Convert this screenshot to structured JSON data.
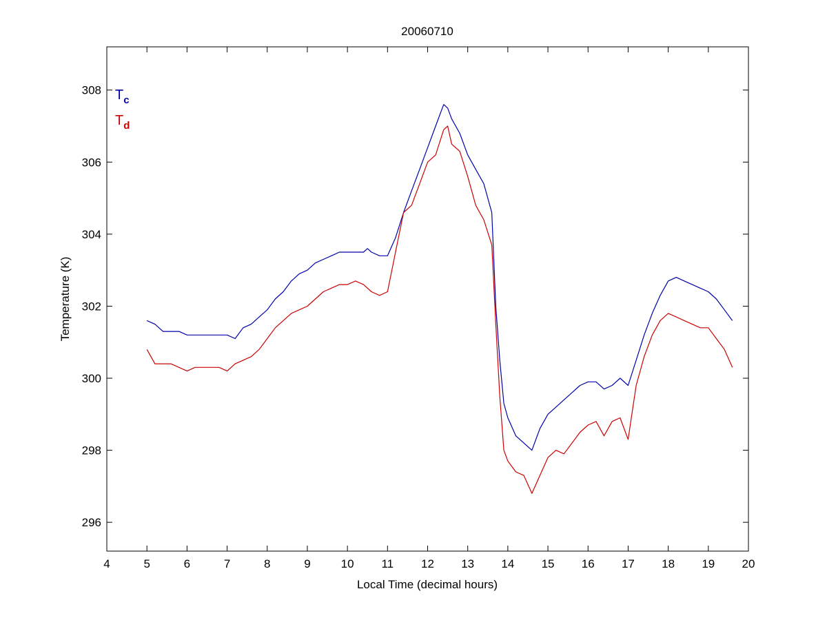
{
  "chart_data": {
    "type": "line",
    "title": "20060710",
    "xlabel": "Local Time (decimal hours)",
    "ylabel": "Temperature (K)",
    "xlim": [
      4,
      20
    ],
    "ylim": [
      295.2,
      309.2
    ],
    "xticks": [
      4,
      5,
      6,
      7,
      8,
      9,
      10,
      11,
      12,
      13,
      14,
      15,
      16,
      17,
      18,
      19,
      20
    ],
    "yticks": [
      296,
      298,
      300,
      302,
      304,
      306,
      308
    ],
    "grid": false,
    "legend_position": "top-left",
    "series": [
      {
        "name_base": "T",
        "name_sub": "c",
        "color": "#0000aa",
        "x": [
          5.0,
          5.2,
          5.4,
          5.6,
          5.8,
          6.0,
          6.2,
          6.4,
          6.6,
          6.8,
          7.0,
          7.2,
          7.4,
          7.6,
          7.8,
          8.0,
          8.2,
          8.4,
          8.6,
          8.8,
          9.0,
          9.2,
          9.4,
          9.6,
          9.8,
          10.0,
          10.2,
          10.4,
          10.5,
          10.6,
          10.8,
          11.0,
          11.2,
          11.4,
          11.6,
          11.8,
          12.0,
          12.2,
          12.4,
          12.5,
          12.6,
          12.8,
          13.0,
          13.2,
          13.4,
          13.6,
          13.7,
          13.8,
          13.9,
          14.0,
          14.2,
          14.4,
          14.6,
          14.8,
          15.0,
          15.2,
          15.4,
          15.6,
          15.8,
          16.0,
          16.2,
          16.4,
          16.6,
          16.8,
          17.0,
          17.2,
          17.4,
          17.6,
          17.8,
          18.0,
          18.2,
          18.4,
          18.6,
          18.8,
          19.0,
          19.2,
          19.4,
          19.6
        ],
        "y": [
          301.6,
          301.5,
          301.3,
          301.3,
          301.3,
          301.2,
          301.2,
          301.2,
          301.2,
          301.2,
          301.2,
          301.1,
          301.4,
          301.5,
          301.7,
          301.9,
          302.2,
          302.4,
          302.7,
          302.9,
          303.0,
          303.2,
          303.3,
          303.4,
          303.5,
          303.5,
          303.5,
          303.5,
          303.6,
          303.5,
          303.4,
          303.4,
          303.9,
          304.6,
          305.2,
          305.8,
          306.4,
          307.0,
          307.6,
          307.5,
          307.2,
          306.8,
          306.2,
          305.8,
          305.4,
          304.6,
          302.0,
          300.5,
          299.3,
          298.9,
          298.4,
          298.2,
          298.0,
          298.6,
          299.0,
          299.2,
          299.4,
          299.6,
          299.8,
          299.9,
          299.9,
          299.7,
          299.8,
          300.0,
          299.8,
          300.5,
          301.2,
          301.8,
          302.3,
          302.7,
          302.8,
          302.7,
          302.6,
          302.5,
          302.4,
          302.2,
          301.9,
          301.6
        ]
      },
      {
        "name_base": "T",
        "name_sub": "d",
        "color": "#cc0000",
        "x": [
          5.0,
          5.2,
          5.4,
          5.6,
          5.8,
          6.0,
          6.2,
          6.4,
          6.6,
          6.8,
          7.0,
          7.2,
          7.4,
          7.6,
          7.8,
          8.0,
          8.2,
          8.4,
          8.6,
          8.8,
          9.0,
          9.2,
          9.4,
          9.6,
          9.8,
          10.0,
          10.2,
          10.4,
          10.6,
          10.8,
          11.0,
          11.2,
          11.4,
          11.6,
          11.8,
          12.0,
          12.2,
          12.4,
          12.5,
          12.6,
          12.8,
          13.0,
          13.2,
          13.4,
          13.6,
          13.7,
          13.8,
          13.9,
          14.0,
          14.2,
          14.4,
          14.6,
          14.8,
          15.0,
          15.2,
          15.4,
          15.6,
          15.8,
          16.0,
          16.2,
          16.4,
          16.6,
          16.8,
          17.0,
          17.2,
          17.4,
          17.6,
          17.8,
          18.0,
          18.2,
          18.4,
          18.6,
          18.8,
          19.0,
          19.2,
          19.4,
          19.6
        ],
        "y": [
          300.8,
          300.4,
          300.4,
          300.4,
          300.3,
          300.2,
          300.3,
          300.3,
          300.3,
          300.3,
          300.2,
          300.4,
          300.5,
          300.6,
          300.8,
          301.1,
          301.4,
          301.6,
          301.8,
          301.9,
          302.0,
          302.2,
          302.4,
          302.5,
          302.6,
          302.6,
          302.7,
          302.6,
          302.4,
          302.3,
          302.4,
          303.5,
          304.6,
          304.8,
          305.4,
          306.0,
          306.2,
          306.9,
          307.0,
          306.5,
          306.3,
          305.6,
          304.8,
          304.4,
          303.7,
          301.5,
          299.5,
          298.0,
          297.7,
          297.4,
          297.3,
          296.8,
          297.3,
          297.8,
          298.0,
          297.9,
          298.2,
          298.5,
          298.7,
          298.8,
          298.4,
          298.8,
          298.9,
          298.3,
          299.8,
          300.6,
          301.2,
          301.6,
          301.8,
          301.7,
          301.6,
          301.5,
          301.4,
          301.4,
          301.1,
          300.8,
          300.3
        ]
      }
    ]
  }
}
